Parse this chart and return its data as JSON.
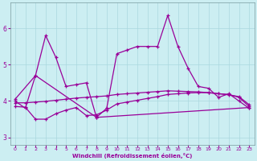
{
  "xlabel": "Windchill (Refroidissement éolien,°C)",
  "background_color": "#cceef2",
  "grid_color": "#aad8de",
  "line_color": "#990099",
  "x": [
    0,
    1,
    2,
    3,
    4,
    5,
    6,
    7,
    8,
    9,
    10,
    11,
    12,
    13,
    14,
    15,
    16,
    17,
    18,
    19,
    20,
    21,
    22,
    23
  ],
  "series1": [
    4.0,
    3.8,
    4.7,
    5.8,
    5.2,
    4.4,
    4.45,
    4.5,
    3.55,
    3.8,
    5.3,
    5.4,
    5.5,
    5.5,
    5.5,
    6.35,
    5.5,
    4.9,
    4.4,
    4.35,
    4.1,
    4.2,
    4.0,
    3.8
  ],
  "series2_x": [
    0,
    2,
    8,
    23
  ],
  "series2_y": [
    4.05,
    4.7,
    3.55,
    3.82
  ],
  "series3_x": [
    0,
    1,
    2,
    3,
    4,
    5,
    6,
    7,
    8,
    9,
    10,
    11,
    12,
    13,
    14,
    15,
    16,
    17,
    18,
    19,
    20,
    21,
    22,
    23
  ],
  "series3_y": [
    3.85,
    3.83,
    3.5,
    3.5,
    3.65,
    3.75,
    3.82,
    3.6,
    3.62,
    3.75,
    3.92,
    3.97,
    4.02,
    4.07,
    4.12,
    4.18,
    4.2,
    4.22,
    4.23,
    4.23,
    4.2,
    4.18,
    4.1,
    3.85
  ],
  "series4_x": [
    0,
    1,
    2,
    3,
    4,
    5,
    6,
    7,
    8,
    9,
    10,
    11,
    12,
    13,
    14,
    15,
    16,
    17,
    18,
    19,
    20,
    21,
    22,
    23
  ],
  "series4_y": [
    3.95,
    3.95,
    3.97,
    3.99,
    4.02,
    4.05,
    4.08,
    4.1,
    4.12,
    4.14,
    4.18,
    4.2,
    4.22,
    4.24,
    4.26,
    4.28,
    4.27,
    4.26,
    4.25,
    4.23,
    4.2,
    4.17,
    4.12,
    3.9
  ],
  "ylim": [
    2.8,
    6.7
  ],
  "yticks": [
    3,
    4,
    5,
    6
  ],
  "xlim": [
    -0.5,
    23.5
  ],
  "xticks": [
    0,
    1,
    2,
    3,
    4,
    5,
    6,
    7,
    8,
    9,
    10,
    11,
    12,
    13,
    14,
    15,
    16,
    17,
    18,
    19,
    20,
    21,
    22,
    23
  ]
}
